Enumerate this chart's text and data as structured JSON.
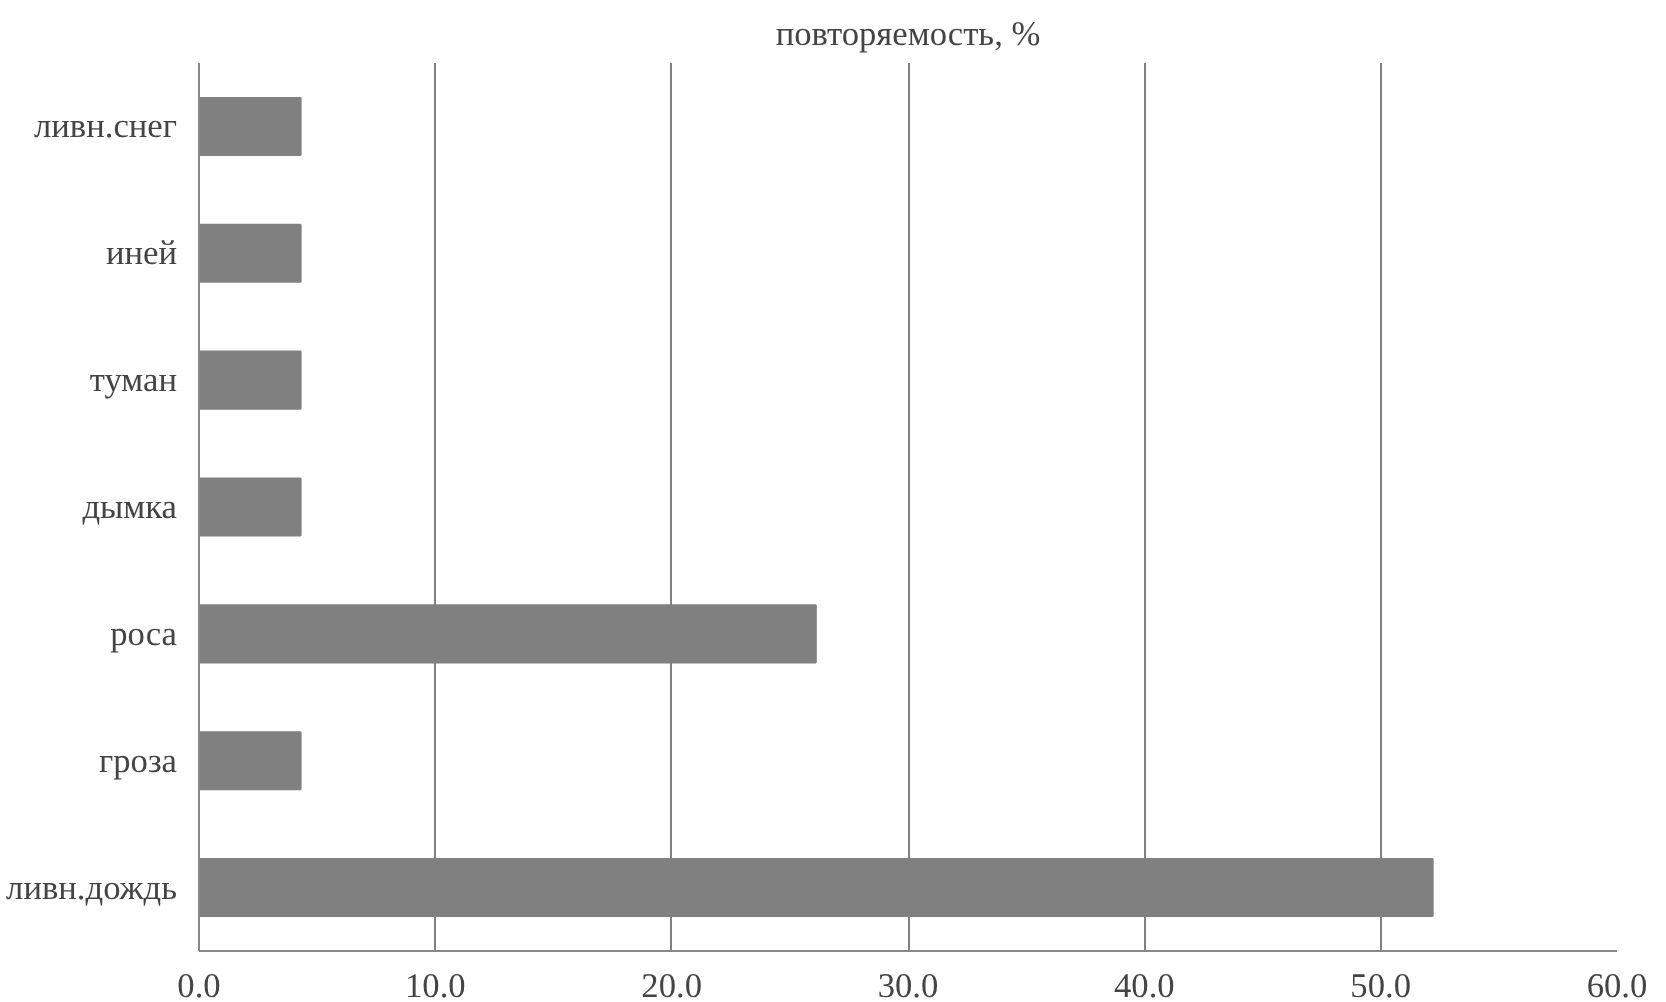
{
  "chart_data": {
    "type": "bar",
    "orientation": "horizontal",
    "title": "повторяемость, %",
    "categories": [
      "ливн.снег",
      "иней",
      "туман",
      "дымка",
      "роса",
      "гроза",
      "ливн.дождь"
    ],
    "values": [
      4.3,
      4.3,
      4.3,
      4.3,
      26.1,
      4.3,
      52.2
    ],
    "color": "#808080",
    "xlim": [
      0,
      60
    ],
    "xticks": [
      {
        "value": 0,
        "label": "0.0"
      },
      {
        "value": 10,
        "label": "10.0"
      },
      {
        "value": 20,
        "label": "20.0"
      },
      {
        "value": 30,
        "label": "30.0"
      },
      {
        "value": 40,
        "label": "40.0"
      },
      {
        "value": 50,
        "label": "50.0"
      },
      {
        "value": 60,
        "label": "60.0"
      }
    ],
    "grid": "x"
  }
}
